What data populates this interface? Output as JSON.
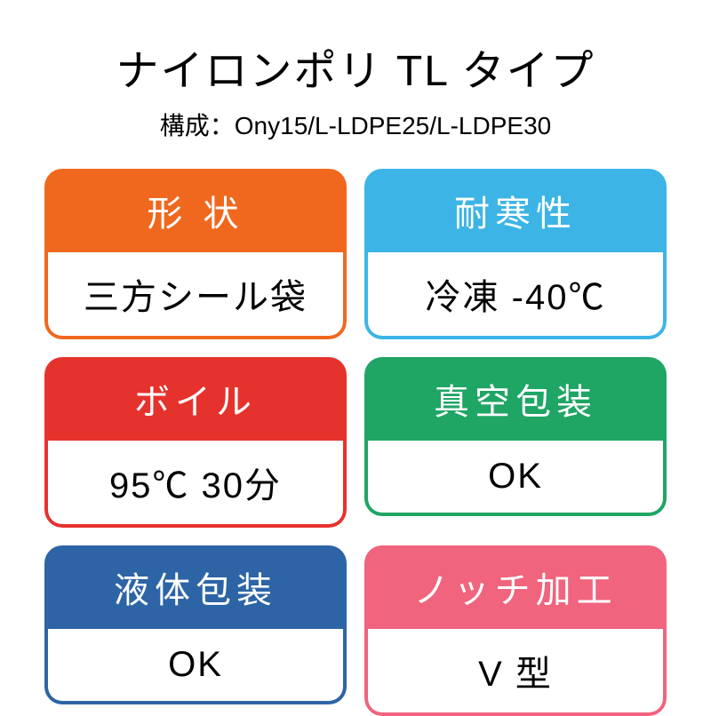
{
  "title": "ナイロンポリ TL タイプ",
  "subtitle": "構成：Ony15/L-LDPE25/L-LDPE30",
  "colors": {
    "orange": "#f0681e",
    "lightblue": "#3cb4e6",
    "red": "#e6322d",
    "green": "#1fa564",
    "blue": "#2d64a5",
    "pink": "#f0647d",
    "text": "#000000",
    "header_text": "#ffffff",
    "background": "#ffffff"
  },
  "typography": {
    "title_fontsize": 48,
    "subtitle_fontsize": 28,
    "card_fontsize": 40,
    "header_letter_spacing": 6
  },
  "layout": {
    "border_radius": 20,
    "border_width": 4,
    "gap": 20
  },
  "cards": [
    {
      "header": "形 状",
      "body": "三方シール袋",
      "color_key": "orange"
    },
    {
      "header": "耐寒性",
      "body": "冷凍 -40℃",
      "color_key": "lightblue"
    },
    {
      "header": "ボイル",
      "body": "95℃ 30分",
      "color_key": "red"
    },
    {
      "header": "真空包装",
      "body": "OK",
      "color_key": "green"
    },
    {
      "header": "液体包装",
      "body": "OK",
      "color_key": "blue"
    },
    {
      "header": "ノッチ加工",
      "body": "V 型",
      "color_key": "pink"
    }
  ]
}
